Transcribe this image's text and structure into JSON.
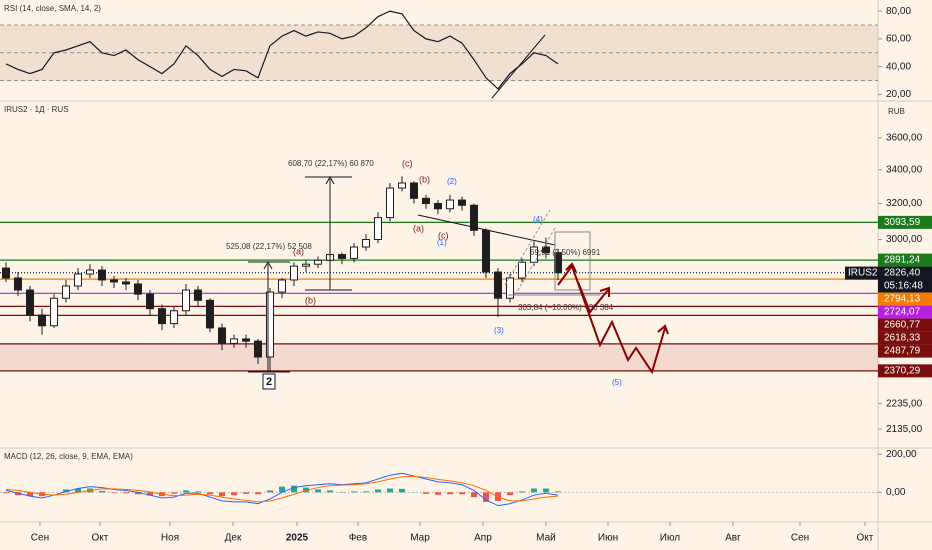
{
  "chart_data": [
    {
      "type": "line",
      "title": "RSI (14, close, SMA, 14, 2)",
      "categories": [
        null,
        null,
        null,
        null,
        null,
        null,
        null,
        null,
        null,
        null,
        null,
        null,
        null,
        null,
        null,
        null,
        null,
        null,
        null,
        null,
        null,
        null,
        null,
        null,
        null,
        null,
        null,
        null,
        null,
        null,
        null,
        null,
        null,
        null,
        null,
        null,
        null,
        null,
        null,
        null,
        null,
        null,
        null,
        null,
        null,
        null,
        null
      ],
      "values": [
        42,
        38,
        35,
        38,
        50,
        52,
        55,
        58,
        50,
        48,
        52,
        45,
        40,
        35,
        42,
        55,
        48,
        38,
        33,
        38,
        37,
        32,
        55,
        62,
        66,
        62,
        65,
        64,
        60,
        62,
        68,
        76,
        80,
        78,
        66,
        60,
        58,
        62,
        57,
        45,
        32,
        24,
        35,
        42,
        50,
        48,
        42
      ],
      "color": "#131722",
      "ylim": [
        16,
        88
      ],
      "yticks": [
        {
          "value": 80,
          "label": "80,00"
        },
        {
          "value": 60,
          "label": "60,00"
        },
        {
          "value": 40,
          "label": "40,00"
        },
        {
          "value": 20,
          "label": "20,00"
        }
      ],
      "band": [
        30,
        70
      ],
      "hlines": [
        70,
        50,
        30
      ]
    },
    {
      "type": "candlestick",
      "title": "IRUS2 · 1Д · RUS",
      "currency": "RUB",
      "categories": [
        null,
        null,
        null,
        null,
        null,
        null,
        null,
        null,
        null,
        null,
        null,
        null,
        null,
        null,
        null,
        null,
        null,
        null,
        null,
        null,
        null,
        null,
        null,
        null,
        null,
        null,
        null,
        null,
        null,
        null,
        null,
        null,
        null,
        null,
        null,
        null,
        null,
        null,
        null,
        null,
        null,
        null,
        null,
        null,
        null,
        null,
        null
      ],
      "open": [
        2850,
        2800,
        2740,
        2620,
        2570,
        2700,
        2760,
        2820,
        2840,
        2790,
        2780,
        2770,
        2720,
        2650,
        2580,
        2640,
        2740,
        2690,
        2560,
        2490,
        2510,
        2500,
        2430,
        2730,
        2790,
        2860,
        2870,
        2890,
        2920,
        2900,
        2960,
        3000,
        3120,
        3290,
        3320,
        3230,
        3200,
        3170,
        3220,
        3190,
        3050,
        2830,
        2700,
        2800,
        2880,
        2960,
        2930
      ],
      "high": [
        2880,
        2830,
        2760,
        2650,
        2720,
        2790,
        2850,
        2870,
        2860,
        2810,
        2800,
        2790,
        2740,
        2670,
        2660,
        2770,
        2760,
        2700,
        2580,
        2530,
        2530,
        2510,
        2750,
        2800,
        2880,
        2890,
        2910,
        2940,
        2930,
        2980,
        3030,
        3150,
        3320,
        3360,
        3330,
        3250,
        3220,
        3250,
        3240,
        3200,
        3060,
        2850,
        2820,
        2900,
        2990,
        3010,
        2950
      ],
      "low": [
        2780,
        2710,
        2590,
        2530,
        2560,
        2680,
        2740,
        2800,
        2760,
        2750,
        2740,
        2690,
        2620,
        2550,
        2560,
        2620,
        2660,
        2540,
        2460,
        2470,
        2470,
        2400,
        2370,
        2700,
        2760,
        2830,
        2850,
        2870,
        2870,
        2880,
        2940,
        2980,
        3100,
        3270,
        3200,
        3170,
        3140,
        3150,
        3160,
        3020,
        2800,
        2610,
        2680,
        2780,
        2860,
        2900,
        2790
      ],
      "close": [
        2800,
        2740,
        2620,
        2570,
        2700,
        2760,
        2820,
        2840,
        2790,
        2780,
        2770,
        2720,
        2650,
        2580,
        2640,
        2740,
        2690,
        2560,
        2490,
        2510,
        2500,
        2430,
        2730,
        2790,
        2860,
        2870,
        2890,
        2920,
        2900,
        2960,
        3000,
        3120,
        3290,
        3320,
        3230,
        3200,
        3170,
        3220,
        3190,
        3050,
        2830,
        2700,
        2800,
        2880,
        2960,
        2930,
        2826.4
      ],
      "up_color": "#ffffff",
      "down_color": "#1e1e1e",
      "log_scale": true,
      "ylim": [
        2064,
        3846
      ],
      "yticks": [
        {
          "value": 3600,
          "label": "3600,00"
        },
        {
          "value": 3400,
          "label": "3400,00"
        },
        {
          "value": 3200,
          "label": "3200,00"
        },
        {
          "value": 3000,
          "label": "3000,00"
        },
        {
          "value": 2235,
          "label": "2235,00"
        },
        {
          "value": 2135,
          "label": "2135,00"
        }
      ],
      "levels": [
        {
          "value": 3093.59,
          "label": "3093,59",
          "color": "#1b7a1b"
        },
        {
          "value": 2891.24,
          "label": "2891,24",
          "color": "#1b7a1b"
        },
        {
          "value": 2826.4,
          "label": "2826,40",
          "color": "#131722",
          "symbol": "IRUS2",
          "countdown": "05:16:48"
        },
        {
          "value": 2794.13,
          "label": "2794,13",
          "color": "#f57c00"
        },
        {
          "value": 2724.07,
          "label": "2724,07",
          "color": "#b620e0"
        },
        {
          "value": 2660.77,
          "label": "2660,77",
          "color": "#7a0d0d"
        },
        {
          "value": 2618.33,
          "label": "2618,33",
          "color": "#7a0d0d"
        },
        {
          "value": 2487.79,
          "label": "2487,79",
          "color": "#7a0d0d"
        },
        {
          "value": 2370.29,
          "label": "2370,29",
          "color": "#7a0d0d"
        }
      ],
      "annotations": [
        "(c)",
        "(b)",
        "(a)",
        "(c)",
        "(2)",
        "(1)",
        "(4)",
        "(3)",
        "(5)",
        "(a)",
        "(b)",
        "2",
        "608,70 (22,17%) 60 870",
        "525,08 (22,17%) 52 508",
        "69,91 (2,50%) 6991",
        "303,84 (−10,00%) −30 384"
      ]
    },
    {
      "type": "macd",
      "title": "MACD (12, 26, close, 9, EMA, EMA)",
      "categories": [
        null,
        null,
        null,
        null,
        null,
        null,
        null,
        null,
        null,
        null,
        null,
        null,
        null,
        null,
        null,
        null,
        null,
        null,
        null,
        null,
        null,
        null,
        null,
        null,
        null,
        null,
        null,
        null,
        null,
        null,
        null,
        null,
        null,
        null,
        null,
        null,
        null,
        null,
        null,
        null,
        null,
        null,
        null,
        null,
        null,
        null,
        null
      ],
      "histogram": [
        -5,
        -15,
        -20,
        -20,
        0,
        15,
        20,
        20,
        7,
        -3,
        -5,
        -10,
        -17,
        -20,
        -7,
        10,
        5,
        -10,
        -20,
        -15,
        -8,
        -10,
        10,
        30,
        35,
        25,
        15,
        10,
        2,
        5,
        5,
        15,
        20,
        18,
        1,
        -8,
        -13,
        -10,
        -10,
        -25,
        -50,
        -45,
        -15,
        5,
        20,
        20,
        5
      ],
      "series": [
        {
          "color": "#2962ff",
          "values": [
            10,
            -5,
            -20,
            -30,
            -15,
            5,
            20,
            30,
            25,
            15,
            10,
            0,
            -15,
            -30,
            -25,
            -5,
            -5,
            -25,
            -45,
            -50,
            -50,
            -60,
            -35,
            0,
            25,
            35,
            40,
            45,
            40,
            45,
            50,
            70,
            90,
            100,
            85,
            70,
            55,
            50,
            40,
            10,
            -40,
            -70,
            -60,
            -40,
            -15,
            -5,
            -15
          ]
        },
        {
          "color": "#ff6d00",
          "values": [
            15,
            10,
            0,
            -10,
            -15,
            -10,
            0,
            10,
            18,
            18,
            15,
            10,
            2,
            -10,
            -18,
            -15,
            -10,
            -15,
            -25,
            -35,
            -42,
            -50,
            -45,
            -30,
            -10,
            10,
            25,
            35,
            38,
            40,
            45,
            55,
            70,
            82,
            84,
            78,
            68,
            60,
            50,
            35,
            10,
            -25,
            -45,
            -45,
            -35,
            -25,
            -20
          ]
        }
      ],
      "pos_color": "#26a69a",
      "neg_color": "#ef5350",
      "ylim": [
        -156,
        233
      ],
      "yticks": [
        {
          "value": 200,
          "label": "200,00"
        },
        {
          "value": 0,
          "label": "0,00"
        }
      ]
    },
    {
      "type": "time-axis",
      "xlim": [
        -0.5,
        72.67
      ],
      "xticks": [
        {
          "value": 2.83,
          "label": "Сен"
        },
        {
          "value": 7.83,
          "label": "Окт"
        },
        {
          "value": 13.67,
          "label": "Ноя"
        },
        {
          "value": 18.92,
          "label": "Дек"
        },
        {
          "value": 24.25,
          "label": "2025"
        },
        {
          "value": 29.33,
          "label": "Фев"
        },
        {
          "value": 34.5,
          "label": "Мар"
        },
        {
          "value": 39.75,
          "label": "Апр"
        },
        {
          "value": 45,
          "label": "Май"
        },
        {
          "value": 50.17,
          "label": "Июн"
        },
        {
          "value": 55.33,
          "label": "Июл"
        },
        {
          "value": 60.58,
          "label": "Авг"
        },
        {
          "value": 66.17,
          "label": "Сен"
        },
        {
          "value": 71.58,
          "label": "Окт"
        }
      ]
    }
  ]
}
